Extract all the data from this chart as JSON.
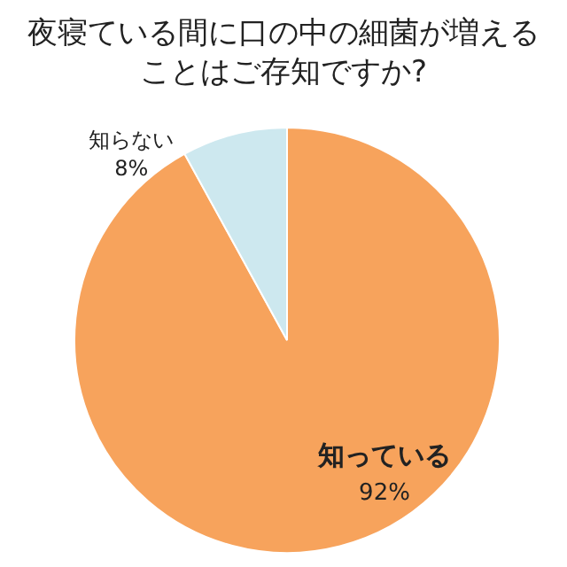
{
  "chart_data": {
    "type": "pie",
    "title": "夜寝ている間に口の中の細菌が増えることはご存知ですか?",
    "categories": [
      "知っている",
      "知らない"
    ],
    "values": [
      92,
      8
    ],
    "value_labels": [
      "92%",
      "8%"
    ],
    "colors": [
      "#f7a35c",
      "#cde8ef"
    ]
  }
}
